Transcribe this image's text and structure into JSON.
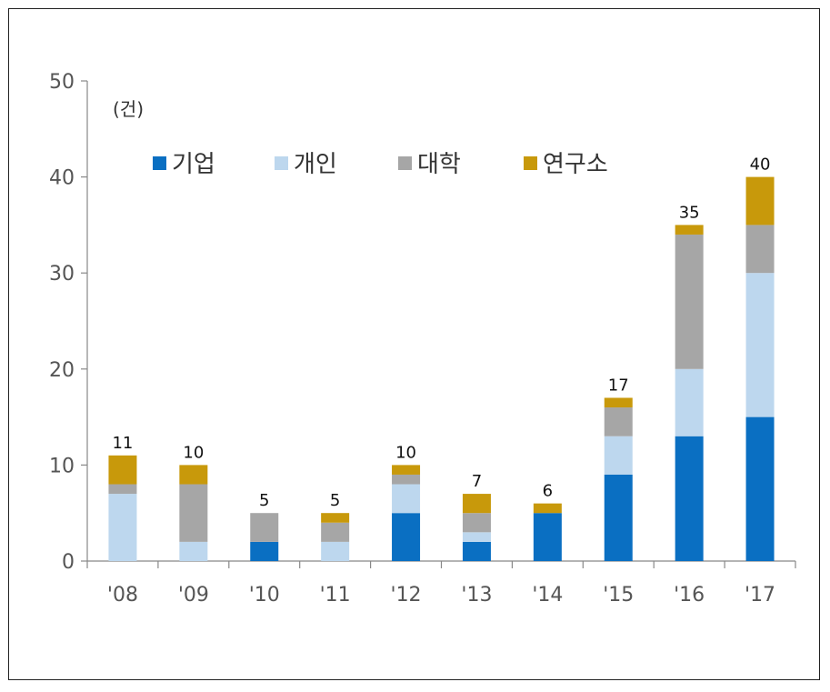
{
  "chart_data": {
    "type": "bar",
    "stacked": true,
    "unit": "(건)",
    "categories": [
      "'08",
      "'09",
      "'10",
      "'11",
      "'12",
      "'13",
      "'14",
      "'15",
      "'16",
      "'17"
    ],
    "series": [
      {
        "name": "기업",
        "color": "#0a6fc2",
        "values": [
          0,
          0,
          2,
          0,
          5,
          2,
          5,
          9,
          13,
          15
        ]
      },
      {
        "name": "개인",
        "color": "#bdd7ee",
        "values": [
          7,
          2,
          0,
          2,
          3,
          1,
          0,
          4,
          7,
          15
        ]
      },
      {
        "name": "대학",
        "color": "#a6a6a6",
        "values": [
          1,
          6,
          3,
          2,
          1,
          2,
          0,
          3,
          14,
          5
        ]
      },
      {
        "name": "연구소",
        "color": "#c8990b",
        "values": [
          3,
          2,
          0,
          1,
          1,
          2,
          1,
          1,
          1,
          5
        ]
      }
    ],
    "totals": [
      11,
      10,
      5,
      5,
      10,
      7,
      6,
      17,
      35,
      40
    ],
    "ylim": [
      0,
      50
    ],
    "yticks": [
      0,
      10,
      20,
      30,
      40,
      50
    ],
    "legend_position": "top-left",
    "grid": false
  }
}
